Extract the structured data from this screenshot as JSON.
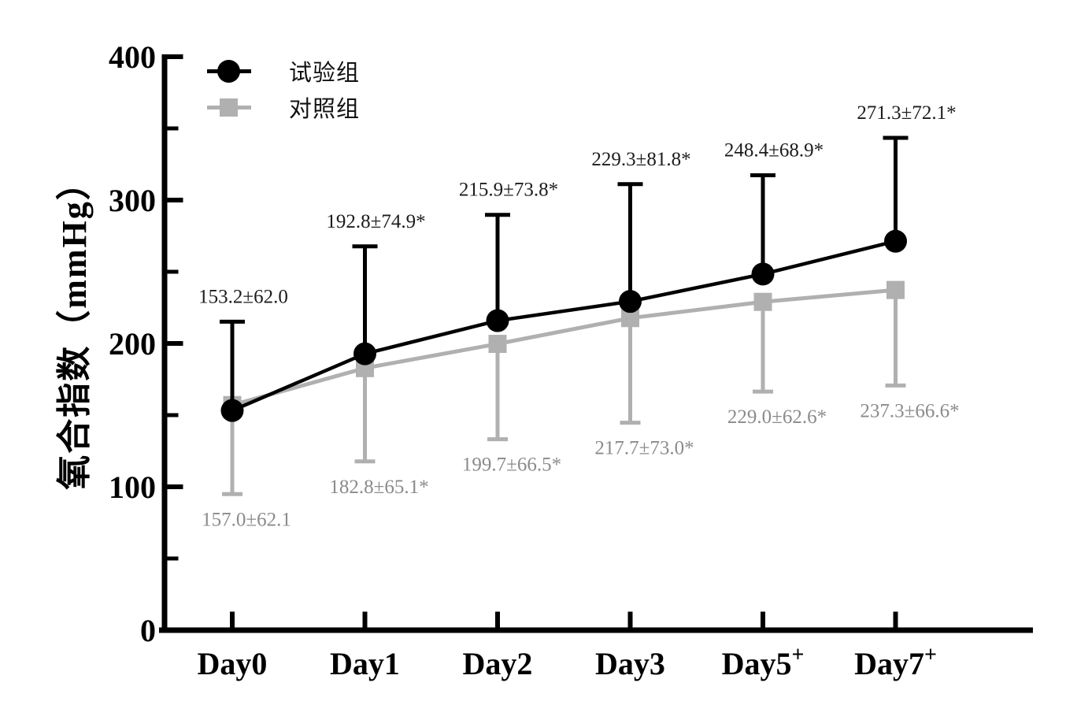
{
  "figure": {
    "background": "#ffffff",
    "text_color": "#000000"
  },
  "chart_data": {
    "type": "line",
    "title": "",
    "xlabel": "",
    "ylabel": "氧合指数（mmHg）",
    "categories": [
      "Day0",
      "Day1",
      "Day2",
      "Day3",
      "Day5+",
      "Day7+"
    ],
    "superscript_suffix": "+",
    "ylim": [
      0,
      400
    ],
    "y_ticks": [
      0,
      100,
      200,
      300,
      400
    ],
    "y_minor_ticks": [
      50,
      150,
      250,
      350
    ],
    "grid": false,
    "legend_position": "top-left-inside",
    "error_bars": true,
    "series": [
      {
        "name": "试验组",
        "color": "#000000",
        "marker": "circle",
        "error_direction": "up",
        "values": [
          153.2,
          192.8,
          215.9,
          229.3,
          248.4,
          271.3
        ],
        "sd": [
          62.0,
          74.9,
          73.8,
          81.8,
          68.9,
          72.1
        ],
        "labels": [
          "153.2±62.0",
          "192.8±74.9*",
          "215.9±73.8*",
          "229.3±81.8*",
          "248.4±68.9*",
          "271.3±72.1*"
        ],
        "label_color": "#1c1c1c"
      },
      {
        "name": "对照组",
        "color": "#b0b0b0",
        "marker": "square",
        "error_direction": "down",
        "values": [
          157.0,
          182.8,
          199.7,
          217.7,
          229.0,
          237.3
        ],
        "sd": [
          62.1,
          65.1,
          66.5,
          73.0,
          62.6,
          66.6
        ],
        "labels": [
          "157.0±62.1",
          "182.8±65.1*",
          "199.7±66.5*",
          "217.7±73.0*",
          "229.0±62.6*",
          "237.3±66.6*"
        ],
        "label_color": "#8b8b8b"
      }
    ]
  }
}
